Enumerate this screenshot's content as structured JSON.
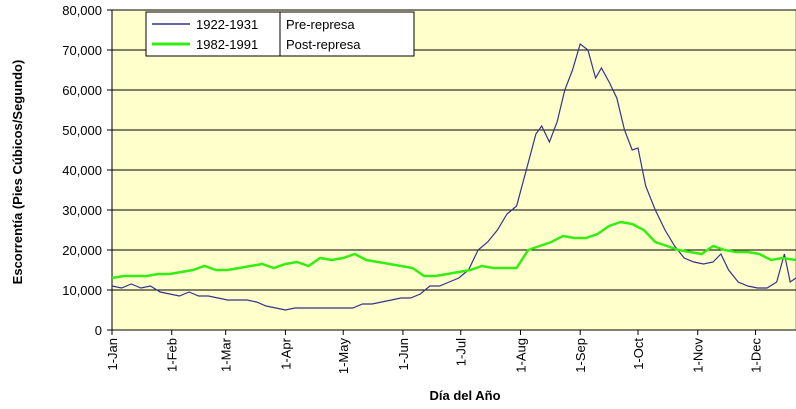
{
  "chart_data": {
    "type": "line",
    "x_label": "Día del Año",
    "y_label": "Escorrentía (Pies Cúbicos/Segundo)",
    "xlim": [
      1,
      356
    ],
    "xticks": [
      {
        "value": 1,
        "label": "1-Jan"
      },
      {
        "value": 32,
        "label": "1-Feb"
      },
      {
        "value": 60,
        "label": "1-Mar"
      },
      {
        "value": 91,
        "label": "1-Apr"
      },
      {
        "value": 121,
        "label": "1-May"
      },
      {
        "value": 152,
        "label": "1-Jun"
      },
      {
        "value": 182,
        "label": "1-Jul"
      },
      {
        "value": 213,
        "label": "1-Aug"
      },
      {
        "value": 244,
        "label": "1-Sep"
      },
      {
        "value": 274,
        "label": "1-Oct"
      },
      {
        "value": 305,
        "label": "1-Nov"
      },
      {
        "value": 335,
        "label": "1-Dec"
      }
    ],
    "ylim": [
      0,
      80000
    ],
    "yticks": [
      0,
      {
        "value": 10000,
        "label": "10,000"
      },
      {
        "value": 20000,
        "label": "20,000"
      },
      {
        "value": 30000,
        "label": "30,000"
      },
      {
        "value": 40000,
        "label": "40,000"
      },
      {
        "value": 50000,
        "label": "50,000"
      },
      {
        "value": 60000,
        "label": "60,000"
      },
      {
        "value": 70000,
        "label": "70,000"
      },
      {
        "value": 80000,
        "label": "80,000"
      }
    ],
    "grid": true,
    "legend": "upper left",
    "series": [
      {
        "name": "1922-1931",
        "note": "Pre-represa",
        "color": "#33338f",
        "x": [
          1,
          6,
          11,
          16,
          21,
          26,
          31,
          36,
          41,
          46,
          51,
          56,
          61,
          66,
          71,
          76,
          81,
          86,
          91,
          96,
          101,
          106,
          111,
          116,
          121,
          126,
          131,
          136,
          141,
          146,
          151,
          156,
          161,
          166,
          171,
          176,
          181,
          186,
          191,
          196,
          201,
          206,
          211,
          216,
          221,
          224,
          228,
          232,
          236,
          240,
          244,
          248,
          252,
          255,
          259,
          263,
          267,
          271,
          274,
          278,
          283,
          288,
          293,
          298,
          303,
          308,
          313,
          317,
          321,
          326,
          331,
          336,
          341,
          346,
          350,
          353,
          356
        ],
        "values": [
          11000,
          10500,
          11500,
          10500,
          11000,
          9500,
          9000,
          8500,
          9500,
          8500,
          8500,
          8000,
          7500,
          7500,
          7500,
          7000,
          6000,
          5500,
          5000,
          5500,
          5500,
          5500,
          5500,
          5500,
          5500,
          5500,
          6500,
          6500,
          7000,
          7500,
          8000,
          8000,
          9000,
          11000,
          11000,
          12000,
          13000,
          15000,
          20000,
          22000,
          25000,
          29000,
          31000,
          40000,
          49000,
          51000,
          47000,
          52000,
          60000,
          65000,
          71500,
          70000,
          63000,
          65500,
          62000,
          58000,
          50000,
          45000,
          45500,
          36000,
          30000,
          25000,
          21000,
          18000,
          17000,
          16500,
          17000,
          19000,
          15000,
          12000,
          11000,
          10500,
          10500,
          12000,
          19000,
          12000,
          13000
        ]
      },
      {
        "name": "1982-1991",
        "note": "Post-represa",
        "color": "#33ee11",
        "x": [
          1,
          7,
          13,
          19,
          25,
          31,
          37,
          43,
          49,
          55,
          61,
          67,
          73,
          79,
          85,
          91,
          97,
          103,
          109,
          115,
          121,
          127,
          133,
          139,
          145,
          151,
          157,
          163,
          169,
          175,
          181,
          187,
          193,
          199,
          205,
          211,
          217,
          223,
          229,
          235,
          241,
          247,
          253,
          259,
          265,
          271,
          277,
          283,
          289,
          295,
          301,
          307,
          313,
          319,
          325,
          331,
          337,
          343,
          349,
          356
        ],
        "values": [
          13000,
          13500,
          13500,
          13500,
          14000,
          14000,
          14500,
          15000,
          16000,
          15000,
          15000,
          15500,
          16000,
          16500,
          15500,
          16500,
          17000,
          16000,
          18000,
          17500,
          18000,
          19000,
          17500,
          17000,
          16500,
          16000,
          15500,
          13500,
          13500,
          14000,
          14500,
          15000,
          16000,
          15500,
          15500,
          15500,
          20000,
          21000,
          22000,
          23500,
          23000,
          23000,
          24000,
          26000,
          27000,
          26500,
          25000,
          22000,
          21000,
          20000,
          19500,
          19000,
          21000,
          20000,
          19500,
          19500,
          19000,
          17500,
          18000,
          17500
        ]
      }
    ]
  }
}
